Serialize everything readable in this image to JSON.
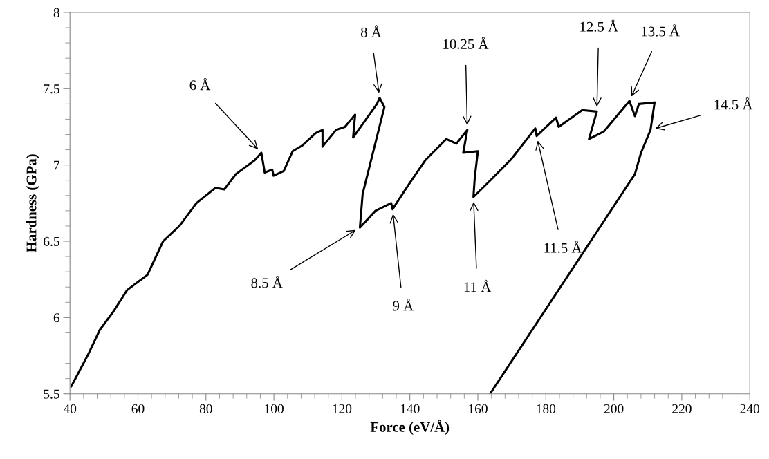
{
  "chart_data": {
    "type": "line",
    "xlabel": "Force (eV/Å)",
    "ylabel": "Hardness (GPa)",
    "x": [
      40.4,
      45.4,
      48.8,
      52.8,
      56.8,
      62.8,
      67.4,
      72.2,
      77.2,
      82.8,
      85.4,
      88.8,
      94.3,
      96.3,
      97.3,
      99.5,
      99.9,
      102.9,
      105.5,
      108.5,
      112.3,
      114.3,
      114.3,
      118.3,
      120.9,
      123.9,
      123.3,
      130.3,
      131.1,
      132.5,
      126.1,
      125.3,
      129.9,
      134.5,
      134.9,
      139.9,
      144.5,
      150.7,
      153.7,
      156.9,
      155.7,
      160.0,
      159.1,
      158.7,
      163.7,
      169.9,
      176.9,
      177.3,
      183.0,
      183.8,
      190.7,
      195.0,
      192.7,
      197.1,
      204.6,
      206.2,
      207.4,
      212.0,
      210.8,
      208.0,
      206.2,
      163.6
    ],
    "series": [
      {
        "color": "#000000",
        "values": [
          5.55,
          5.76,
          5.92,
          6.04,
          6.18,
          6.28,
          6.5,
          6.6,
          6.75,
          6.85,
          6.84,
          6.94,
          7.03,
          7.08,
          6.95,
          6.97,
          6.93,
          6.96,
          7.09,
          7.13,
          7.21,
          7.23,
          7.12,
          7.23,
          7.25,
          7.33,
          7.18,
          7.4,
          7.44,
          7.38,
          6.81,
          6.59,
          6.7,
          6.75,
          6.71,
          6.88,
          7.03,
          7.17,
          7.14,
          7.23,
          7.08,
          7.09,
          6.92,
          6.79,
          6.9,
          7.04,
          7.24,
          7.19,
          7.31,
          7.25,
          7.36,
          7.35,
          7.17,
          7.22,
          7.42,
          7.32,
          7.4,
          7.41,
          7.23,
          7.08,
          6.94,
          5.5
        ]
      }
    ],
    "xlim": [
      40,
      240
    ],
    "xticks": [
      40,
      60,
      80,
      100,
      120,
      140,
      160,
      180,
      200,
      220,
      240
    ],
    "ylim": [
      5.5,
      8
    ],
    "yticks": [
      5.5,
      6,
      6.5,
      7,
      7.5,
      8
    ],
    "grid": false,
    "legend": false,
    "annotations": [
      {
        "text": "6 Å",
        "x": 96.3,
        "y": 7.08
      },
      {
        "text": "8 Å",
        "x": 131.1,
        "y": 7.44
      },
      {
        "text": "10.25 Å",
        "x": 156.9,
        "y": 7.23
      },
      {
        "text": "12.5 Å",
        "x": 195.0,
        "y": 7.35
      },
      {
        "text": "13.5 Å",
        "x": 204.6,
        "y": 7.42
      },
      {
        "text": "14.5 Å",
        "x": 210.8,
        "y": 7.23
      },
      {
        "text": "8.5 Å",
        "x": 125.3,
        "y": 6.59
      },
      {
        "text": "9 Å",
        "x": 134.9,
        "y": 6.71
      },
      {
        "text": "11 Å",
        "x": 158.7,
        "y": 6.79
      },
      {
        "text": "11.5 Å",
        "x": 177.3,
        "y": 7.19
      }
    ]
  }
}
